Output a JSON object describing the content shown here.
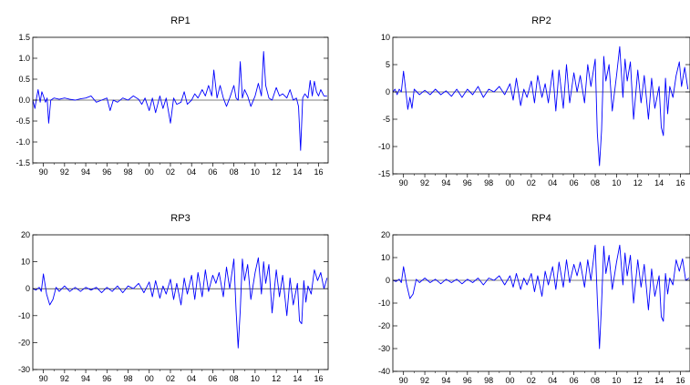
{
  "chart_data": [
    {
      "type": "line",
      "title": "RP1",
      "ylim": [
        -1.5,
        1.5
      ],
      "yticks": [
        -1.5,
        -1.0,
        -0.5,
        0.0,
        0.5,
        1.0,
        1.5
      ],
      "ytick_labels": [
        "-1.5",
        "-1.0",
        "-0.5",
        "0.0",
        "0.5",
        "1.0",
        "1.5"
      ],
      "xlim": [
        1989,
        2016.9
      ],
      "xticks": [
        1990,
        1992,
        1994,
        1996,
        1998,
        2000,
        2002,
        2004,
        2006,
        2008,
        2010,
        2012,
        2014,
        2016
      ],
      "xtick_labels": [
        "90",
        "92",
        "94",
        "96",
        "98",
        "00",
        "02",
        "04",
        "06",
        "08",
        "10",
        "12",
        "14",
        "16"
      ],
      "color": "#0000ff",
      "x": [
        1989.0,
        1989.2,
        1989.35,
        1989.5,
        1989.7,
        1989.85,
        1990.0,
        1990.2,
        1990.35,
        1990.5,
        1990.7,
        1991.0,
        1991.5,
        1992.0,
        1992.5,
        1993.0,
        1993.5,
        1994.0,
        1994.5,
        1995.0,
        1995.5,
        1996.0,
        1996.3,
        1996.6,
        1997.0,
        1997.5,
        1998.0,
        1998.5,
        1999.0,
        1999.3,
        1999.6,
        2000.0,
        2000.3,
        2000.6,
        2001.0,
        2001.3,
        2001.6,
        2002.0,
        2002.3,
        2002.6,
        2003.0,
        2003.3,
        2003.6,
        2004.0,
        2004.3,
        2004.6,
        2005.0,
        2005.3,
        2005.6,
        2005.9,
        2006.1,
        2006.4,
        2006.7,
        2007.0,
        2007.3,
        2007.6,
        2008.0,
        2008.2,
        2008.4,
        2008.6,
        2008.8,
        2009.0,
        2009.3,
        2009.6,
        2010.0,
        2010.3,
        2010.6,
        2010.8,
        2011.0,
        2011.3,
        2011.6,
        2012.0,
        2012.3,
        2012.6,
        2013.0,
        2013.3,
        2013.6,
        2013.9,
        2014.1,
        2014.3,
        2014.5,
        2014.7,
        2015.0,
        2015.2,
        2015.4,
        2015.6,
        2015.8,
        2016.0,
        2016.2,
        2016.5,
        2016.8
      ],
      "y": [
        0.0,
        -0.2,
        0.05,
        0.25,
        -0.05,
        0.2,
        0.1,
        -0.05,
        0.05,
        -0.55,
        0.0,
        0.05,
        0.02,
        0.05,
        0.02,
        0.0,
        0.03,
        0.05,
        0.1,
        -0.05,
        0.0,
        0.05,
        -0.25,
        0.0,
        -0.05,
        0.05,
        0.0,
        0.1,
        0.02,
        -0.1,
        0.05,
        -0.25,
        0.05,
        -0.3,
        0.1,
        -0.2,
        0.05,
        -0.55,
        0.05,
        -0.1,
        -0.05,
        0.2,
        -0.1,
        0.0,
        0.15,
        0.05,
        0.25,
        0.1,
        0.35,
        0.1,
        0.72,
        0.05,
        0.35,
        0.05,
        -0.15,
        0.05,
        0.35,
        0.05,
        0.0,
        0.92,
        0.05,
        0.25,
        0.1,
        -0.15,
        0.1,
        0.4,
        0.1,
        1.16,
        0.35,
        0.05,
        0.0,
        0.3,
        0.1,
        0.15,
        0.05,
        0.25,
        0.0,
        0.05,
        -0.15,
        -1.2,
        0.05,
        0.15,
        0.05,
        0.47,
        0.1,
        0.45,
        0.2,
        0.1,
        0.25,
        0.1,
        0.1
      ]
    },
    {
      "type": "line",
      "title": "RP2",
      "ylim": [
        -15,
        10
      ],
      "yticks": [
        -15,
        -10,
        -5,
        0,
        5,
        10
      ],
      "ytick_labels": [
        "-15",
        "-10",
        "-5",
        "0",
        "5",
        "10"
      ],
      "xlim": [
        1989,
        2016.9
      ],
      "xticks": [
        1990,
        1992,
        1994,
        1996,
        1998,
        2000,
        2002,
        2004,
        2006,
        2008,
        2010,
        2012,
        2014,
        2016
      ],
      "xtick_labels": [
        "90",
        "92",
        "94",
        "96",
        "98",
        "00",
        "02",
        "04",
        "06",
        "08",
        "10",
        "12",
        "14",
        "16"
      ],
      "color": "#0000ff",
      "x": [
        1989.0,
        1989.2,
        1989.4,
        1989.6,
        1989.8,
        1990.0,
        1990.2,
        1990.4,
        1990.6,
        1990.8,
        1991.0,
        1991.5,
        1992.0,
        1992.5,
        1993.0,
        1993.5,
        1994.0,
        1994.5,
        1995.0,
        1995.5,
        1996.0,
        1996.5,
        1997.0,
        1997.5,
        1998.0,
        1998.5,
        1999.0,
        1999.5,
        2000.0,
        2000.3,
        2000.6,
        2001.0,
        2001.3,
        2001.6,
        2002.0,
        2002.3,
        2002.6,
        2003.0,
        2003.3,
        2003.6,
        2004.0,
        2004.3,
        2004.6,
        2005.0,
        2005.3,
        2005.6,
        2006.0,
        2006.3,
        2006.6,
        2007.0,
        2007.3,
        2007.6,
        2008.0,
        2008.2,
        2008.4,
        2008.6,
        2008.8,
        2009.0,
        2009.3,
        2009.6,
        2010.0,
        2010.3,
        2010.6,
        2010.8,
        2011.0,
        2011.3,
        2011.6,
        2012.0,
        2012.3,
        2012.6,
        2013.0,
        2013.3,
        2013.6,
        2014.0,
        2014.2,
        2014.4,
        2014.6,
        2014.8,
        2015.0,
        2015.3,
        2015.6,
        2015.9,
        2016.1,
        2016.4,
        2016.7
      ],
      "y": [
        0.0,
        0.5,
        -0.5,
        0.5,
        0.0,
        3.8,
        0.5,
        -3.2,
        -1.0,
        -3.0,
        0.5,
        -0.5,
        0.3,
        -0.5,
        0.5,
        -0.5,
        0.2,
        -0.8,
        0.5,
        -1.0,
        0.5,
        -0.5,
        1.0,
        -1.0,
        0.5,
        0.0,
        1.0,
        -0.5,
        1.5,
        -1.5,
        2.5,
        -2.5,
        0.5,
        -1.0,
        2.0,
        -2.0,
        3.0,
        -1.0,
        1.5,
        -2.0,
        4.0,
        -3.5,
        4.0,
        -3.0,
        5.0,
        -2.0,
        3.5,
        0.0,
        3.0,
        -2.0,
        5.0,
        1.0,
        6.0,
        -7.5,
        -13.5,
        -7.0,
        6.5,
        2.0,
        5.0,
        -3.5,
        3.0,
        8.3,
        -1.0,
        6.0,
        2.0,
        5.5,
        -5.0,
        4.0,
        -2.0,
        3.0,
        -5.0,
        2.5,
        -3.0,
        1.0,
        -6.5,
        -8.0,
        2.5,
        -4.0,
        1.0,
        -1.0,
        3.0,
        5.5,
        1.0,
        4.5,
        0.5
      ]
    },
    {
      "type": "line",
      "title": "RP3",
      "ylim": [
        -30,
        20
      ],
      "yticks": [
        -30,
        -20,
        -10,
        0,
        10,
        20
      ],
      "ytick_labels": [
        "-30",
        "-20",
        "-10",
        "0",
        "10",
        "20"
      ],
      "xlim": [
        1989,
        2016.9
      ],
      "xticks": [
        1990,
        1992,
        1994,
        1996,
        1998,
        2000,
        2002,
        2004,
        2006,
        2008,
        2010,
        2012,
        2014,
        2016
      ],
      "xtick_labels": [
        "90",
        "92",
        "94",
        "96",
        "98",
        "00",
        "02",
        "04",
        "06",
        "08",
        "10",
        "12",
        "14",
        "16"
      ],
      "color": "#0000ff",
      "x": [
        1989.0,
        1989.3,
        1989.6,
        1989.8,
        1990.0,
        1990.3,
        1990.6,
        1990.9,
        1991.2,
        1991.5,
        1992.0,
        1992.5,
        1993.0,
        1993.5,
        1994.0,
        1994.5,
        1995.0,
        1995.5,
        1996.0,
        1996.5,
        1997.0,
        1997.5,
        1998.0,
        1998.5,
        1999.0,
        1999.5,
        2000.0,
        2000.3,
        2000.6,
        2001.0,
        2001.3,
        2001.6,
        2002.0,
        2002.3,
        2002.6,
        2003.0,
        2003.3,
        2003.6,
        2004.0,
        2004.3,
        2004.6,
        2005.0,
        2005.3,
        2005.6,
        2006.0,
        2006.3,
        2006.6,
        2007.0,
        2007.3,
        2007.6,
        2008.0,
        2008.2,
        2008.4,
        2008.6,
        2008.8,
        2009.0,
        2009.3,
        2009.6,
        2010.0,
        2010.3,
        2010.6,
        2010.8,
        2011.0,
        2011.3,
        2011.6,
        2012.0,
        2012.3,
        2012.6,
        2013.0,
        2013.3,
        2013.6,
        2014.0,
        2014.2,
        2014.4,
        2014.6,
        2014.8,
        2015.0,
        2015.3,
        2015.6,
        2015.9,
        2016.2,
        2016.5,
        2016.8
      ],
      "y": [
        0.0,
        -0.5,
        0.5,
        -1.0,
        5.5,
        -2.0,
        -6.0,
        -4.0,
        0.5,
        -1.0,
        1.0,
        -1.0,
        0.5,
        -1.0,
        0.5,
        -0.5,
        0.5,
        -1.5,
        0.5,
        -1.0,
        1.0,
        -1.5,
        1.0,
        0.0,
        2.0,
        -1.5,
        2.5,
        -3.0,
        3.0,
        -3.5,
        1.0,
        -2.0,
        3.5,
        -4.0,
        2.0,
        -6.0,
        4.0,
        -2.0,
        5.0,
        -4.0,
        6.0,
        -3.0,
        7.0,
        -1.0,
        5.0,
        2.0,
        6.0,
        -3.0,
        8.0,
        0.0,
        11.0,
        -8.0,
        -22.0,
        -8.0,
        11.0,
        3.0,
        9.0,
        -4.0,
        6.0,
        11.5,
        -2.0,
        10.0,
        2.0,
        9.0,
        -9.0,
        7.0,
        -3.0,
        5.0,
        -10.0,
        4.0,
        -6.0,
        2.0,
        -12.0,
        -13.0,
        3.0,
        -5.0,
        1.0,
        -2.0,
        7.0,
        3.0,
        6.0,
        0.0,
        4.0
      ]
    },
    {
      "type": "line",
      "title": "RP4",
      "ylim": [
        -40,
        20
      ],
      "yticks": [
        -40,
        -30,
        -20,
        -10,
        0,
        10,
        20
      ],
      "ytick_labels": [
        "-40",
        "-30",
        "-20",
        "-10",
        "0",
        "10",
        "20"
      ],
      "xlim": [
        1989,
        2016.9
      ],
      "xticks": [
        1990,
        1992,
        1994,
        1996,
        1998,
        2000,
        2002,
        2004,
        2006,
        2008,
        2010,
        2012,
        2014,
        2016
      ],
      "xtick_labels": [
        "90",
        "92",
        "94",
        "96",
        "98",
        "00",
        "02",
        "04",
        "06",
        "08",
        "10",
        "12",
        "14",
        "16"
      ],
      "color": "#0000ff",
      "x": [
        1989.0,
        1989.3,
        1989.6,
        1989.8,
        1990.0,
        1990.3,
        1990.6,
        1990.9,
        1991.2,
        1991.5,
        1992.0,
        1992.5,
        1993.0,
        1993.5,
        1994.0,
        1994.5,
        1995.0,
        1995.5,
        1996.0,
        1996.5,
        1997.0,
        1997.5,
        1998.0,
        1998.5,
        1999.0,
        1999.5,
        2000.0,
        2000.3,
        2000.6,
        2001.0,
        2001.3,
        2001.6,
        2002.0,
        2002.3,
        2002.6,
        2003.0,
        2003.3,
        2003.6,
        2004.0,
        2004.3,
        2004.6,
        2005.0,
        2005.3,
        2005.6,
        2006.0,
        2006.3,
        2006.6,
        2007.0,
        2007.3,
        2007.6,
        2008.0,
        2008.2,
        2008.4,
        2008.6,
        2008.8,
        2009.0,
        2009.3,
        2009.6,
        2010.0,
        2010.3,
        2010.6,
        2010.8,
        2011.0,
        2011.3,
        2011.6,
        2012.0,
        2012.3,
        2012.6,
        2013.0,
        2013.3,
        2013.6,
        2014.0,
        2014.2,
        2014.4,
        2014.6,
        2014.8,
        2015.0,
        2015.3,
        2015.6,
        2015.9,
        2016.2,
        2016.5,
        2016.8
      ],
      "y": [
        0.0,
        -0.5,
        0.5,
        -1.0,
        6.0,
        -2.0,
        -8.0,
        -6.0,
        0.5,
        -1.0,
        1.0,
        -1.0,
        0.5,
        -1.5,
        0.5,
        -1.0,
        0.5,
        -1.5,
        0.5,
        -1.0,
        1.0,
        -2.0,
        1.0,
        0.0,
        2.0,
        -2.0,
        2.0,
        -3.0,
        3.0,
        -4.0,
        1.0,
        -2.0,
        3.0,
        -5.0,
        2.0,
        -7.0,
        4.0,
        -2.0,
        6.0,
        -4.0,
        8.0,
        -3.0,
        9.0,
        -1.0,
        7.0,
        2.0,
        8.0,
        -3.0,
        9.0,
        0.0,
        15.5,
        -8.0,
        -30.0,
        -10.0,
        15.0,
        3.0,
        11.0,
        -4.0,
        8.0,
        15.5,
        -2.0,
        12.0,
        2.0,
        11.0,
        -10.0,
        9.0,
        -3.0,
        7.0,
        -13.0,
        5.0,
        -7.0,
        2.0,
        -16.0,
        -18.0,
        3.0,
        -6.0,
        1.0,
        -2.0,
        9.0,
        4.0,
        9.5,
        0.0,
        1.0
      ]
    }
  ]
}
